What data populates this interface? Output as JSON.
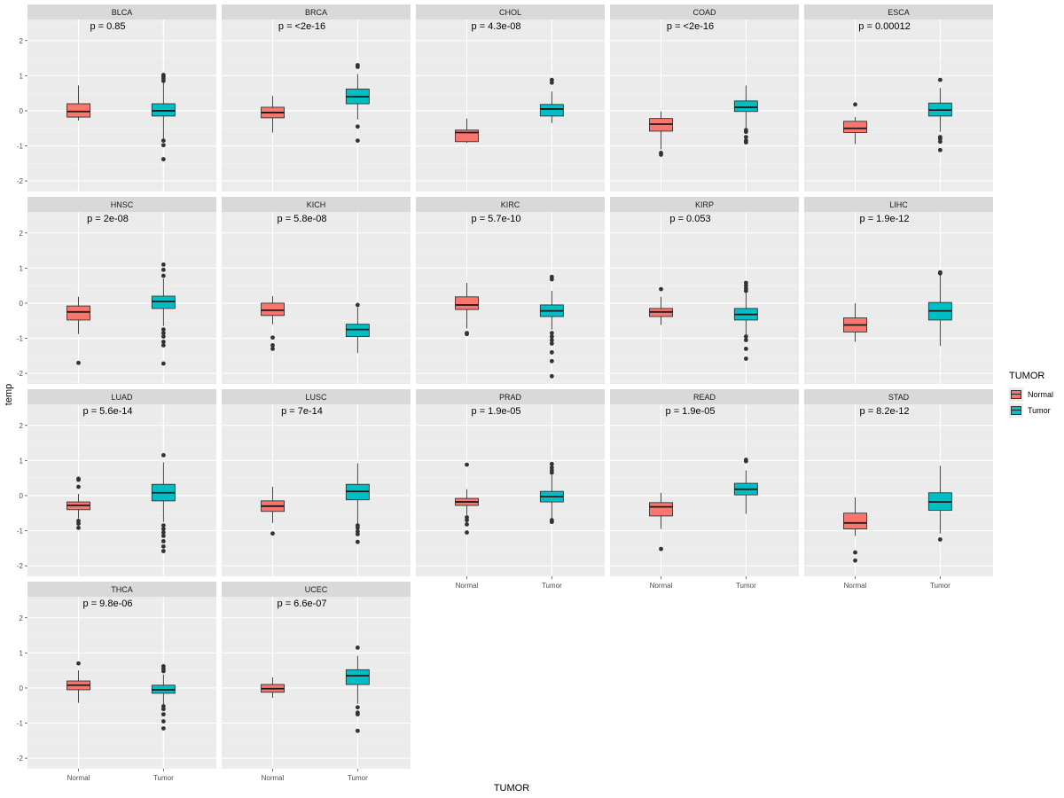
{
  "chart_data": {
    "type": "boxplot",
    "xlabel": "TUMOR",
    "ylabel": "temp",
    "ylim": [
      -2.3,
      2.6
    ],
    "yticks": [
      -2,
      -1,
      0,
      1,
      2
    ],
    "categories": [
      "Normal",
      "Tumor"
    ],
    "legend": {
      "title": "TUMOR",
      "position": "right",
      "items": [
        {
          "label": "Normal",
          "color": "#F8766D"
        },
        {
          "label": "Tumor",
          "color": "#00BFC4"
        }
      ]
    },
    "panels": [
      {
        "name": "BLCA",
        "p": "p = 0.85",
        "groups": [
          {
            "group": "Normal",
            "whisker_low": -0.28,
            "q1": -0.18,
            "median": -0.02,
            "q3": 0.2,
            "whisker_high": 0.72,
            "outliers": []
          },
          {
            "group": "Tumor",
            "whisker_low": -0.8,
            "q1": -0.15,
            "median": 0.0,
            "q3": 0.2,
            "whisker_high": 0.8,
            "outliers": [
              1.02,
              0.98,
              0.92,
              0.85,
              -0.85,
              -0.98,
              -1.38
            ]
          }
        ]
      },
      {
        "name": "BRCA",
        "p": "p = <2e-16",
        "groups": [
          {
            "group": "Normal",
            "whisker_low": -0.62,
            "q1": -0.2,
            "median": -0.05,
            "q3": 0.1,
            "whisker_high": 0.42,
            "outliers": []
          },
          {
            "group": "Tumor",
            "whisker_low": -0.25,
            "q1": 0.2,
            "median": 0.4,
            "q3": 0.62,
            "whisker_high": 1.05,
            "outliers": [
              1.3,
              1.25,
              -0.45,
              -0.85
            ]
          }
        ]
      },
      {
        "name": "CHOL",
        "p": "p = 4.3e-08",
        "groups": [
          {
            "group": "Normal",
            "whisker_low": -0.92,
            "q1": -0.88,
            "median": -0.62,
            "q3": -0.55,
            "whisker_high": -0.22,
            "outliers": []
          },
          {
            "group": "Tumor",
            "whisker_low": -0.35,
            "q1": -0.15,
            "median": 0.05,
            "q3": 0.18,
            "whisker_high": 0.55,
            "outliers": [
              0.88,
              0.8
            ]
          }
        ]
      },
      {
        "name": "COAD",
        "p": "p = <2e-16",
        "groups": [
          {
            "group": "Normal",
            "whisker_low": -1.1,
            "q1": -0.58,
            "median": -0.38,
            "q3": -0.22,
            "whisker_high": -0.02,
            "outliers": [
              -1.2,
              -1.25
            ]
          },
          {
            "group": "Tumor",
            "whisker_low": -0.5,
            "q1": -0.02,
            "median": 0.1,
            "q3": 0.28,
            "whisker_high": 0.72,
            "outliers": [
              -0.55,
              -0.6,
              -0.75,
              -0.85,
              -0.9
            ]
          }
        ]
      },
      {
        "name": "ESCA",
        "p": "p = 0.00012",
        "groups": [
          {
            "group": "Normal",
            "whisker_low": -0.95,
            "q1": -0.62,
            "median": -0.5,
            "q3": -0.3,
            "whisker_high": -0.18,
            "outliers": [
              0.18
            ]
          },
          {
            "group": "Tumor",
            "whisker_low": -0.6,
            "q1": -0.15,
            "median": 0.02,
            "q3": 0.22,
            "whisker_high": 0.65,
            "outliers": [
              0.88,
              -0.75,
              -0.8,
              -0.88,
              -1.12
            ]
          }
        ]
      },
      {
        "name": "HNSC",
        "p": "p = 2e-08",
        "groups": [
          {
            "group": "Normal",
            "whisker_low": -0.88,
            "q1": -0.48,
            "median": -0.25,
            "q3": -0.08,
            "whisker_high": 0.18,
            "outliers": [
              -1.7
            ]
          },
          {
            "group": "Tumor",
            "whisker_low": -0.65,
            "q1": -0.15,
            "median": 0.05,
            "q3": 0.2,
            "whisker_high": 0.7,
            "outliers": [
              1.1,
              0.95,
              0.78,
              -0.75,
              -0.85,
              -0.95,
              -1.1,
              -1.2,
              -1.72
            ]
          }
        ]
      },
      {
        "name": "KICH",
        "p": "p = 5.8e-08",
        "groups": [
          {
            "group": "Normal",
            "whisker_low": -0.6,
            "q1": -0.35,
            "median": -0.2,
            "q3": 0.0,
            "whisker_high": 0.2,
            "outliers": [
              -0.98,
              -1.2,
              -1.3
            ]
          },
          {
            "group": "Tumor",
            "whisker_low": -1.42,
            "q1": -0.95,
            "median": -0.75,
            "q3": -0.6,
            "whisker_high": -0.12,
            "outliers": [
              -0.05
            ]
          }
        ]
      },
      {
        "name": "KIRC",
        "p": "p = 5.7e-10",
        "groups": [
          {
            "group": "Normal",
            "whisker_low": -0.72,
            "q1": -0.18,
            "median": -0.05,
            "q3": 0.18,
            "whisker_high": 0.58,
            "outliers": [
              -0.85,
              -0.88
            ]
          },
          {
            "group": "Tumor",
            "whisker_low": -0.75,
            "q1": -0.38,
            "median": -0.22,
            "q3": -0.05,
            "whisker_high": 0.35,
            "outliers": [
              0.75,
              0.68,
              -0.85,
              -0.95,
              -1.05,
              -1.15,
              -1.4,
              -1.65,
              -2.08
            ]
          }
        ]
      },
      {
        "name": "KIRP",
        "p": "p = 0.053",
        "groups": [
          {
            "group": "Normal",
            "whisker_low": -0.62,
            "q1": -0.38,
            "median": -0.25,
            "q3": -0.15,
            "whisker_high": 0.18,
            "outliers": [
              0.4
            ]
          },
          {
            "group": "Tumor",
            "whisker_low": -0.9,
            "q1": -0.48,
            "median": -0.32,
            "q3": -0.15,
            "whisker_high": 0.3,
            "outliers": [
              0.58,
              0.5,
              0.42,
              0.35,
              -0.95,
              -1.05,
              -1.3,
              -1.58
            ]
          }
        ]
      },
      {
        "name": "LIHC",
        "p": "p = 1.9e-12",
        "groups": [
          {
            "group": "Normal",
            "whisker_low": -1.1,
            "q1": -0.82,
            "median": -0.62,
            "q3": -0.42,
            "whisker_high": 0.0,
            "outliers": []
          },
          {
            "group": "Tumor",
            "whisker_low": -1.22,
            "q1": -0.48,
            "median": -0.22,
            "q3": 0.02,
            "whisker_high": 0.8,
            "outliers": [
              0.88,
              0.85
            ]
          }
        ]
      },
      {
        "name": "LUAD",
        "p": "p = 5.6e-14",
        "groups": [
          {
            "group": "Normal",
            "whisker_low": -0.65,
            "q1": -0.4,
            "median": -0.28,
            "q3": -0.18,
            "whisker_high": 0.05,
            "outliers": [
              0.48,
              0.45,
              0.25,
              -0.72,
              -0.8,
              -0.92
            ]
          },
          {
            "group": "Tumor",
            "whisker_low": -0.75,
            "q1": -0.15,
            "median": 0.08,
            "q3": 0.32,
            "whisker_high": 0.95,
            "outliers": [
              1.15,
              -0.85,
              -0.95,
              -1.05,
              -1.15,
              -1.3,
              -1.45,
              -1.58
            ]
          }
        ]
      },
      {
        "name": "LUSC",
        "p": "p = 7e-14",
        "groups": [
          {
            "group": "Normal",
            "whisker_low": -0.78,
            "q1": -0.45,
            "median": -0.3,
            "q3": -0.15,
            "whisker_high": 0.25,
            "outliers": [
              -1.08
            ]
          },
          {
            "group": "Tumor",
            "whisker_low": -0.8,
            "q1": -0.12,
            "median": 0.12,
            "q3": 0.32,
            "whisker_high": 0.92,
            "outliers": [
              -0.85,
              -0.92,
              -1.02,
              -1.1,
              -1.32
            ]
          }
        ]
      },
      {
        "name": "PRAD",
        "p": "p = 1.9e-05",
        "groups": [
          {
            "group": "Normal",
            "whisker_low": -0.55,
            "q1": -0.28,
            "median": -0.18,
            "q3": -0.08,
            "whisker_high": 0.18,
            "outliers": [
              0.88,
              -0.62,
              -0.7,
              -0.82,
              -1.05
            ]
          },
          {
            "group": "Tumor",
            "whisker_low": -0.65,
            "q1": -0.18,
            "median": -0.03,
            "q3": 0.12,
            "whisker_high": 0.58,
            "outliers": [
              0.9,
              0.8,
              0.72,
              0.65,
              -0.7,
              -0.75
            ]
          }
        ]
      },
      {
        "name": "READ",
        "p": "p = 1.9e-05",
        "groups": [
          {
            "group": "Normal",
            "whisker_low": -0.95,
            "q1": -0.58,
            "median": -0.32,
            "q3": -0.2,
            "whisker_high": 0.08,
            "outliers": [
              -1.52
            ]
          },
          {
            "group": "Tumor",
            "whisker_low": -0.52,
            "q1": 0.02,
            "median": 0.18,
            "q3": 0.35,
            "whisker_high": 0.72,
            "outliers": [
              1.02,
              0.98
            ]
          }
        ]
      },
      {
        "name": "STAD",
        "p": "p = 8.2e-12",
        "groups": [
          {
            "group": "Normal",
            "whisker_low": -1.15,
            "q1": -0.95,
            "median": -0.78,
            "q3": -0.5,
            "whisker_high": -0.05,
            "outliers": [
              -1.62,
              -1.85
            ]
          },
          {
            "group": "Tumor",
            "whisker_low": -1.08,
            "q1": -0.42,
            "median": -0.18,
            "q3": 0.08,
            "whisker_high": 0.85,
            "outliers": [
              -1.25
            ]
          }
        ]
      },
      {
        "name": "THCA",
        "p": "p = 9.8e-06",
        "groups": [
          {
            "group": "Normal",
            "whisker_low": -0.42,
            "q1": -0.05,
            "median": 0.08,
            "q3": 0.2,
            "whisker_high": 0.5,
            "outliers": [
              0.7
            ]
          },
          {
            "group": "Tumor",
            "whisker_low": -0.48,
            "q1": -0.15,
            "median": -0.05,
            "q3": 0.08,
            "whisker_high": 0.38,
            "outliers": [
              0.62,
              0.55,
              0.48,
              -0.52,
              -0.6,
              -0.75,
              -0.95,
              -1.15
            ]
          }
        ]
      },
      {
        "name": "UCEC",
        "p": "p = 6.6e-07",
        "groups": [
          {
            "group": "Normal",
            "whisker_low": -0.28,
            "q1": -0.12,
            "median": -0.02,
            "q3": 0.1,
            "whisker_high": 0.3,
            "outliers": []
          },
          {
            "group": "Tumor",
            "whisker_low": -0.45,
            "q1": 0.1,
            "median": 0.35,
            "q3": 0.52,
            "whisker_high": 0.92,
            "outliers": [
              1.15,
              -0.55,
              -0.7,
              -0.75,
              -1.22
            ]
          }
        ]
      }
    ]
  }
}
